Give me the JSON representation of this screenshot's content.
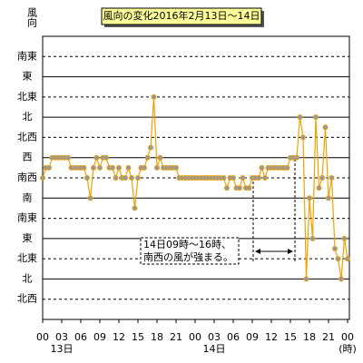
{
  "chart_data": {
    "type": "line",
    "title": "風向の変化2016年2月13日～14日",
    "y_label": "風向",
    "x_unit": "(時)",
    "day_labels": [
      "13日",
      "14日"
    ],
    "annotations": [
      "14日09時～16時、",
      "南西の風が強まる。"
    ],
    "color": "#f0a000",
    "marker_color": "#999999",
    "x": [
      0,
      0.5,
      1,
      1.5,
      2,
      2.5,
      3,
      3.5,
      4,
      4.5,
      5,
      5.5,
      6,
      6.5,
      7,
      7.5,
      8,
      8.5,
      9,
      9.5,
      10,
      10.5,
      11,
      11.5,
      12,
      12.5,
      13,
      13.5,
      14,
      14.5,
      15,
      15.5,
      16,
      16.5,
      17,
      17.5,
      18,
      18.5,
      19,
      19.5,
      20,
      20.5,
      21,
      21.5,
      22,
      22.5,
      23,
      23.5,
      24,
      24.5,
      25,
      25.5,
      26,
      26.5,
      27,
      27.5,
      28,
      28.5,
      29,
      29.5,
      30,
      30.5,
      31,
      31.5,
      32,
      32.5,
      33,
      33.5,
      34,
      34.5,
      35,
      35.5,
      36,
      36.5,
      37,
      37.5,
      38,
      38.5,
      39,
      39.5,
      40,
      40.5,
      41,
      41.5,
      42,
      42.5,
      43,
      43.5,
      44,
      44.5,
      45,
      45.5,
      46,
      46.5,
      47,
      47.5,
      48
    ],
    "values": [
      6,
      6.5,
      6.5,
      7,
      7,
      7,
      7,
      7,
      7,
      6.5,
      6.5,
      6.5,
      6.5,
      6.5,
      6,
      5,
      6.5,
      7,
      6.5,
      7,
      7,
      6.5,
      6.5,
      6,
      6.5,
      6,
      6,
      6.5,
      6,
      4.5,
      6,
      6.5,
      6.5,
      7,
      7.5,
      10,
      6.5,
      7,
      6.5,
      6.5,
      6.5,
      6.5,
      6.5,
      6,
      6,
      6,
      6,
      6,
      6,
      6,
      6,
      6,
      6,
      6,
      6,
      6,
      6,
      6,
      5.5,
      6,
      6,
      5.5,
      5.5,
      6,
      5.5,
      5.5,
      6,
      6,
      6,
      6.5,
      6,
      6.5,
      6.5,
      6.5,
      6.5,
      6.5,
      6.5,
      6.5,
      7,
      7,
      7,
      9,
      8,
      1,
      5,
      3,
      9,
      5.5,
      6,
      8.5,
      5,
      6,
      2.5,
      2,
      1,
      3,
      2
    ],
    "xlim": [
      0,
      48
    ],
    "xticks": [
      {
        "value": 0,
        "label": "00"
      },
      {
        "value": 3,
        "label": "03"
      },
      {
        "value": 6,
        "label": "06"
      },
      {
        "value": 9,
        "label": "09"
      },
      12,
      15,
      18,
      21,
      {
        "value": 24,
        "label": "00"
      },
      {
        "value": 27,
        "label": "03"
      },
      {
        "value": 30,
        "label": "06"
      },
      {
        "value": 33,
        "label": "09"
      },
      {
        "value": 36,
        "label": "12"
      },
      {
        "value": 39,
        "label": "15"
      },
      {
        "value": 42,
        "label": "18"
      },
      {
        "value": 45,
        "label": "21"
      },
      {
        "value": 48,
        "label": "00"
      }
    ],
    "ylim": [
      -1,
      13
    ],
    "yticks": [
      {
        "value": 0,
        "label": "北西"
      },
      {
        "value": 1,
        "label": "北"
      },
      {
        "value": 2,
        "label": "北東"
      },
      {
        "value": 3,
        "label": "東"
      },
      {
        "value": 4,
        "label": "南東"
      },
      {
        "value": 5,
        "label": "南"
      },
      {
        "value": 6,
        "label": "南西"
      },
      {
        "value": 7,
        "label": "西"
      },
      {
        "value": 8,
        "label": "北西"
      },
      {
        "value": 9,
        "label": "北"
      },
      {
        "value": 10,
        "label": "北東"
      },
      {
        "value": 11,
        "label": "東"
      },
      {
        "value": 12,
        "label": "南東"
      }
    ],
    "grid_dash": [
      true,
      false,
      true,
      false,
      true,
      false,
      true,
      false,
      true,
      false,
      true,
      false,
      true
    ]
  }
}
